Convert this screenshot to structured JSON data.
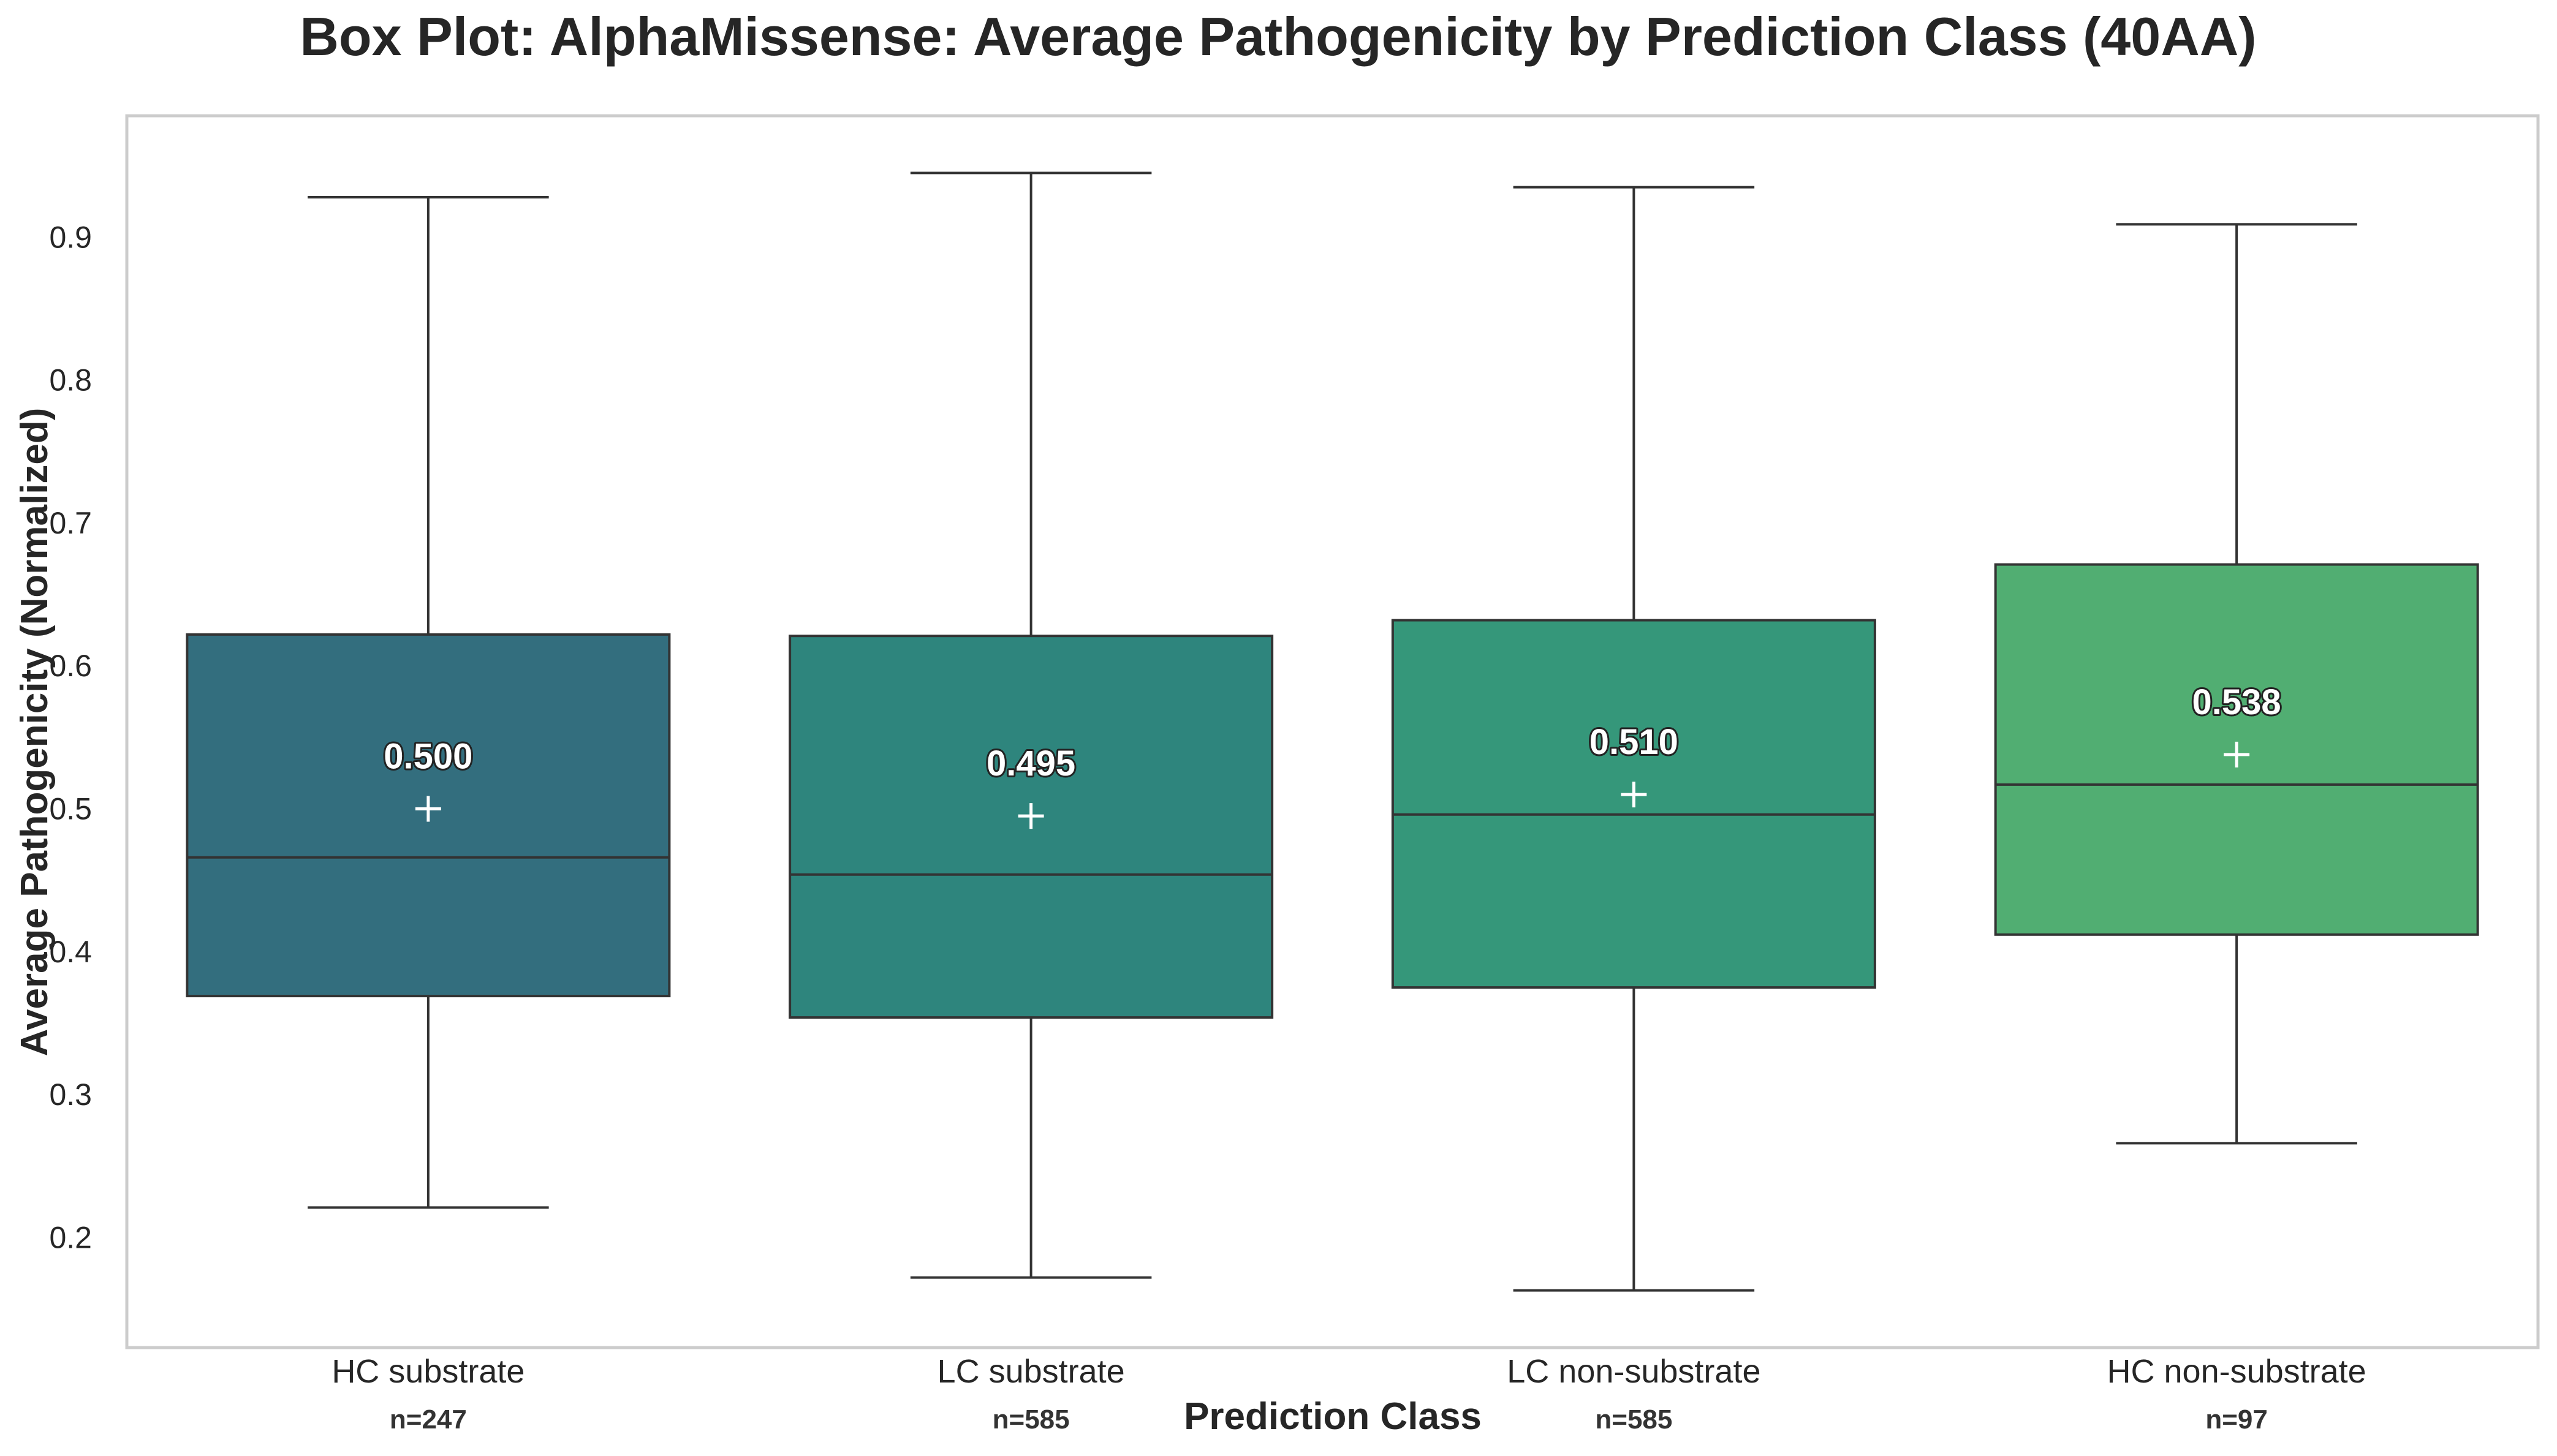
{
  "chart_data": {
    "type": "box",
    "title": "Box Plot: AlphaMissense: Average Pathogenicity by Prediction Class (40AA)",
    "xlabel": "Prediction Class",
    "ylabel": "Average Pathogenicity (Normalized)",
    "ylim": [
      0.123,
      0.985
    ],
    "yticks": [
      "0.2",
      "0.3",
      "0.4",
      "0.5",
      "0.6",
      "0.7",
      "0.8",
      "0.9"
    ],
    "grid": false,
    "categories": [
      "HC substrate",
      "LC substrate",
      "LC non-substrate",
      "HC non-substrate"
    ],
    "counts": [
      "n=247",
      "n=585",
      "n=585",
      "n=97"
    ],
    "boxes": [
      {
        "category": "HC substrate",
        "whisker_low": 0.221,
        "q1": 0.369,
        "median": 0.466,
        "q3": 0.622,
        "whisker_high": 0.928,
        "mean": 0.5,
        "mean_label": "0.500",
        "color": "#336e7e"
      },
      {
        "category": "LC substrate",
        "whisker_low": 0.172,
        "q1": 0.354,
        "median": 0.454,
        "q3": 0.621,
        "whisker_high": 0.945,
        "mean": 0.495,
        "mean_label": "0.495",
        "color": "#2e857d"
      },
      {
        "category": "LC non-substrate",
        "whisker_low": 0.163,
        "q1": 0.375,
        "median": 0.496,
        "q3": 0.632,
        "whisker_high": 0.935,
        "mean": 0.51,
        "mean_label": "0.510",
        "color": "#35977a"
      },
      {
        "category": "HC non-substrate",
        "whisker_low": 0.266,
        "q1": 0.412,
        "median": 0.517,
        "q3": 0.671,
        "whisker_high": 0.909,
        "mean": 0.538,
        "mean_label": "0.538",
        "color": "#51ae72"
      }
    ]
  }
}
